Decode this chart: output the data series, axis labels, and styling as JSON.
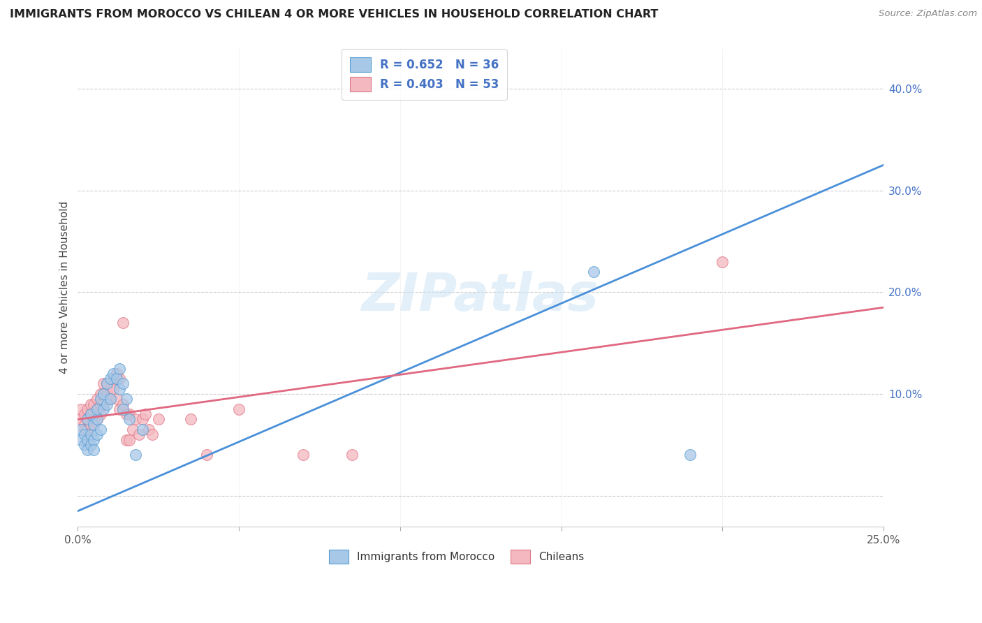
{
  "title": "IMMIGRANTS FROM MOROCCO VS CHILEAN 4 OR MORE VEHICLES IN HOUSEHOLD CORRELATION CHART",
  "source": "Source: ZipAtlas.com",
  "ylabel": "4 or more Vehicles in Household",
  "xlim": [
    0.0,
    0.25
  ],
  "ylim": [
    -0.03,
    0.44
  ],
  "yticks": [
    0.0,
    0.1,
    0.2,
    0.3,
    0.4
  ],
  "ytick_labels": [
    "",
    "10.0%",
    "20.0%",
    "30.0%",
    "40.0%"
  ],
  "xtick_labels": [
    "0.0%",
    "",
    "",
    "",
    "",
    "25.0%"
  ],
  "legend1_label": "R = 0.652   N = 36",
  "legend2_label": "R = 0.403   N = 53",
  "legend_bottom_label1": "Immigrants from Morocco",
  "legend_bottom_label2": "Chileans",
  "blue_scatter_color": "#a8c8e8",
  "blue_scatter_edge": "#5a9fd4",
  "pink_scatter_color": "#f4b8c0",
  "pink_scatter_edge": "#e07888",
  "blue_line_color": "#4a90d9",
  "pink_line_color": "#e06880",
  "watermark": "ZIPatlas",
  "blue_scatter_x": [
    0.001,
    0.001,
    0.002,
    0.002,
    0.003,
    0.003,
    0.003,
    0.004,
    0.004,
    0.004,
    0.005,
    0.005,
    0.005,
    0.006,
    0.006,
    0.006,
    0.007,
    0.007,
    0.008,
    0.008,
    0.009,
    0.009,
    0.01,
    0.01,
    0.011,
    0.012,
    0.013,
    0.013,
    0.014,
    0.014,
    0.015,
    0.016,
    0.018,
    0.02,
    0.19,
    0.16
  ],
  "blue_scatter_y": [
    0.055,
    0.065,
    0.06,
    0.05,
    0.075,
    0.055,
    0.045,
    0.08,
    0.06,
    0.05,
    0.07,
    0.055,
    0.045,
    0.075,
    0.085,
    0.06,
    0.095,
    0.065,
    0.1,
    0.085,
    0.11,
    0.09,
    0.115,
    0.095,
    0.12,
    0.115,
    0.125,
    0.105,
    0.11,
    0.085,
    0.095,
    0.075,
    0.04,
    0.065,
    0.04,
    0.22
  ],
  "pink_scatter_x": [
    0.001,
    0.001,
    0.002,
    0.002,
    0.002,
    0.003,
    0.003,
    0.003,
    0.004,
    0.004,
    0.004,
    0.005,
    0.005,
    0.005,
    0.006,
    0.006,
    0.006,
    0.007,
    0.007,
    0.007,
    0.008,
    0.008,
    0.008,
    0.009,
    0.009,
    0.01,
    0.01,
    0.011,
    0.011,
    0.012,
    0.012,
    0.013,
    0.013,
    0.014,
    0.014,
    0.015,
    0.015,
    0.016,
    0.016,
    0.017,
    0.018,
    0.019,
    0.02,
    0.021,
    0.022,
    0.023,
    0.025,
    0.035,
    0.04,
    0.05,
    0.07,
    0.085,
    0.2
  ],
  "pink_scatter_y": [
    0.075,
    0.085,
    0.07,
    0.08,
    0.065,
    0.085,
    0.075,
    0.065,
    0.09,
    0.08,
    0.07,
    0.09,
    0.08,
    0.07,
    0.095,
    0.085,
    0.075,
    0.1,
    0.09,
    0.08,
    0.11,
    0.1,
    0.09,
    0.11,
    0.1,
    0.105,
    0.095,
    0.115,
    0.105,
    0.12,
    0.095,
    0.115,
    0.085,
    0.17,
    0.09,
    0.08,
    0.055,
    0.08,
    0.055,
    0.065,
    0.075,
    0.06,
    0.075,
    0.08,
    0.065,
    0.06,
    0.075,
    0.075,
    0.04,
    0.085,
    0.04,
    0.04,
    0.23
  ],
  "blue_line_x": [
    0.0,
    0.25
  ],
  "blue_line_y": [
    -0.015,
    0.325
  ],
  "pink_line_x": [
    0.0,
    0.25
  ],
  "pink_line_y": [
    0.075,
    0.185
  ]
}
